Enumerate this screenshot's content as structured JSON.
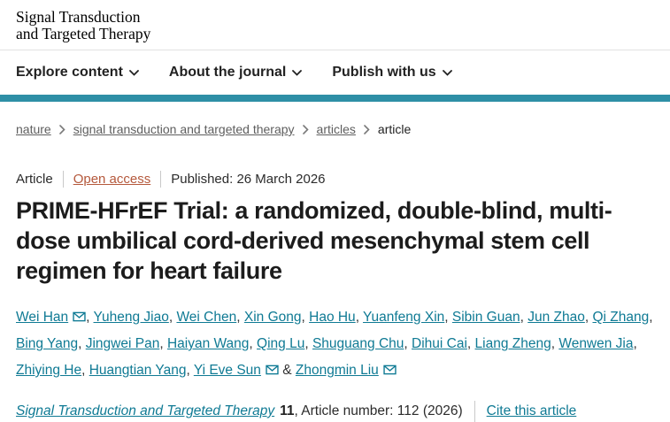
{
  "colors": {
    "accent_bar": "#2e8fa6",
    "link_teal": "#0f7a94",
    "open_access_link": "#b5593c"
  },
  "header": {
    "logo_line1": "Signal Transduction",
    "logo_line2": "and Targeted Therapy"
  },
  "nav": {
    "items": [
      "Explore content",
      "About the journal",
      "Publish with us"
    ]
  },
  "breadcrumb": {
    "items": [
      "nature",
      "signal transduction and targeted therapy",
      "articles",
      "article"
    ]
  },
  "meta": {
    "type_label": "Article",
    "access_label": "Open access",
    "published_label": "Published: 26 March 2026"
  },
  "title": "PRIME-HFrEF Trial: a randomized, double-blind, multi-dose umbilical cord-derived mesenchymal stem cell regimen for heart failure",
  "authors": {
    "list": [
      {
        "name": "Wei Han",
        "email": true
      },
      {
        "name": "Yuheng Jiao",
        "email": false
      },
      {
        "name": "Wei Chen",
        "email": false
      },
      {
        "name": "Xin Gong",
        "email": false
      },
      {
        "name": "Hao Hu",
        "email": false
      },
      {
        "name": "Yuanfeng Xin",
        "email": false
      },
      {
        "name": "Sibin Guan",
        "email": false
      },
      {
        "name": "Jun Zhao",
        "email": false
      },
      {
        "name": "Qi Zhang",
        "email": false
      },
      {
        "name": "Bing Yang",
        "email": false
      },
      {
        "name": "Jingwei Pan",
        "email": false
      },
      {
        "name": "Haiyan Wang",
        "email": false
      },
      {
        "name": "Qing Lu",
        "email": false
      },
      {
        "name": "Shuguang Chu",
        "email": false
      },
      {
        "name": "Dihui Cai",
        "email": false
      },
      {
        "name": "Liang Zheng",
        "email": false
      },
      {
        "name": "Wenwen Jia",
        "email": false
      },
      {
        "name": "Zhiying He",
        "email": false
      },
      {
        "name": "Huangtian Yang",
        "email": false
      },
      {
        "name": "Yi Eve Sun",
        "email": true
      },
      {
        "name": "Zhongmin Liu",
        "email": true
      }
    ],
    "separator": ", ",
    "last_separator": " & "
  },
  "citation": {
    "journal": "Signal Transduction and Targeted Therapy",
    "volume": "11",
    "suffix": ", Article number: 112 (2026)",
    "cite_label": "Cite this article"
  }
}
